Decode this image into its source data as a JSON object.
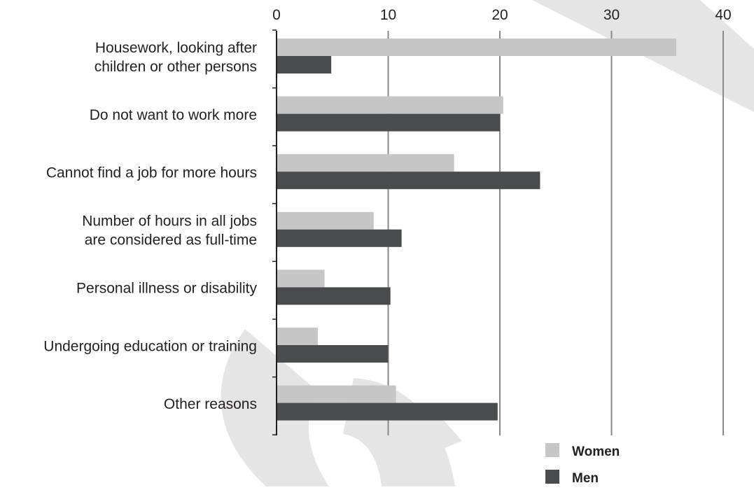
{
  "chart_data": {
    "type": "bar",
    "orientation": "horizontal",
    "axis_position": "top",
    "xlim": [
      0,
      40
    ],
    "ticks": [
      0,
      10,
      20,
      30,
      40
    ],
    "tick_labels": [
      "0",
      "10",
      "20",
      "30",
      "40"
    ],
    "grid": true,
    "legend_position": "bottom-right",
    "categories": [
      [
        "Housework, looking after",
        "children or other persons"
      ],
      [
        "Do not want to work more"
      ],
      [
        "Cannot find a job for more hours"
      ],
      [
        "Number of hours in all jobs",
        "are considered as full-time"
      ],
      [
        "Personal illness or disability"
      ],
      [
        "Undergoing education or training"
      ],
      [
        "Other reasons"
      ]
    ],
    "series": [
      {
        "name": "Women",
        "color": "#c6c6c6",
        "values": [
          35.8,
          20.3,
          15.9,
          8.7,
          4.3,
          3.7,
          10.7
        ]
      },
      {
        "name": "Men",
        "color": "#4a4b4d",
        "values": [
          4.9,
          20.0,
          23.6,
          11.2,
          10.2,
          10.0,
          19.8
        ]
      }
    ],
    "colors": {
      "grid": "#8a8a8a",
      "axis": "#231f20",
      "text": "#231f20",
      "watermark": "#e5e5e5"
    }
  }
}
